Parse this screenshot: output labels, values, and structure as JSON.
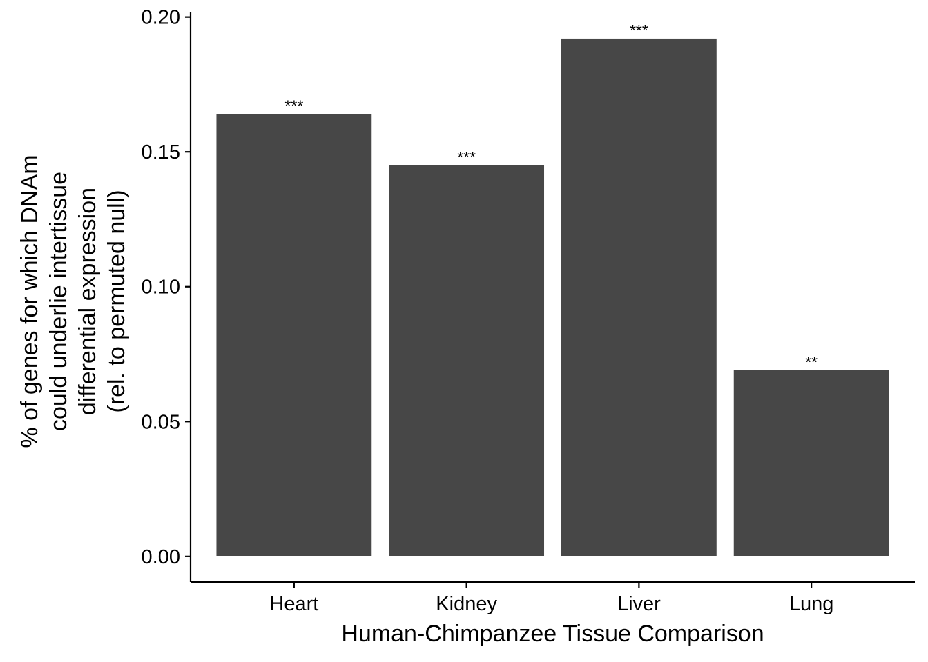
{
  "chart_data": {
    "type": "bar",
    "categories": [
      "Heart",
      "Kidney",
      "Liver",
      "Lung"
    ],
    "values": [
      0.164,
      0.145,
      0.192,
      0.069
    ],
    "annotations": [
      "***",
      "***",
      "***",
      "**"
    ],
    "title": "",
    "xlabel": "Human-Chimpanzee Tissue Comparison",
    "ylabel_lines": [
      "% of genes for which DNAm",
      "could underlie intertissue",
      "differential expression",
      "(rel. to permuted null)"
    ],
    "ylim": [
      -0.0095,
      0.2017
    ],
    "yticks": [
      "0.00",
      "0.05",
      "0.10",
      "0.15",
      "0.20"
    ],
    "ytick_values": [
      0,
      0.05,
      0.1,
      0.15,
      0.2
    ],
    "grid": false,
    "legend": "none",
    "colors": {
      "bar": "#474747",
      "axis": "#000000",
      "background": "#ffffff"
    }
  }
}
